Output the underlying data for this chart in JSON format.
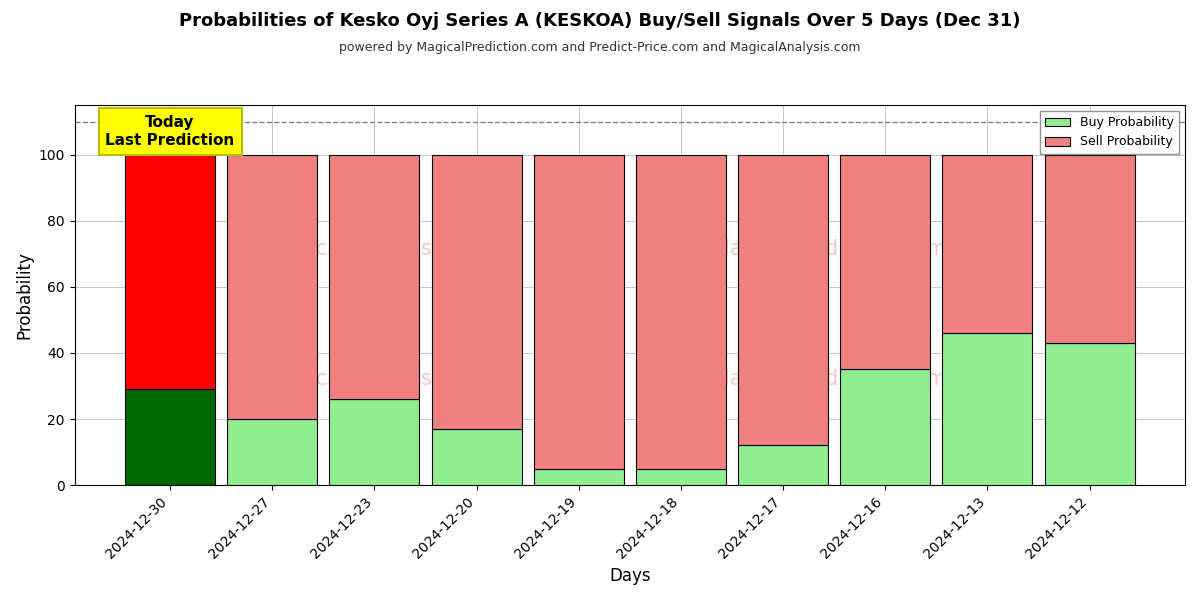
{
  "title": "Probabilities of Kesko Oyj Series A (KESKOA) Buy/Sell Signals Over 5 Days (Dec 31)",
  "subtitle": "powered by MagicalPrediction.com and Predict-Price.com and MagicalAnalysis.com",
  "xlabel": "Days",
  "ylabel": "Probability",
  "categories": [
    "2024-12-30",
    "2024-12-27",
    "2024-12-23",
    "2024-12-20",
    "2024-12-19",
    "2024-12-18",
    "2024-12-17",
    "2024-12-16",
    "2024-12-13",
    "2024-12-12"
  ],
  "buy_values": [
    29,
    20,
    26,
    17,
    5,
    5,
    12,
    35,
    46,
    43
  ],
  "sell_values": [
    71,
    80,
    74,
    83,
    95,
    95,
    88,
    65,
    54,
    57
  ],
  "today_index": 0,
  "today_buy_color": "#006600",
  "today_sell_color": "#ff0000",
  "other_buy_color": "#90ee90",
  "other_sell_color": "#f08080",
  "today_label_text": "Today\nLast Prediction",
  "today_label_bg": "#ffff00",
  "legend_buy_label": "Buy Probability",
  "legend_sell_label": "Sell Probability",
  "ylim": [
    0,
    115
  ],
  "yticks": [
    0,
    20,
    40,
    60,
    80,
    100
  ],
  "dashed_line_y": 110,
  "watermark_text1": "MagicalAnalysis.com",
  "watermark_text2": "MagicalPrediction.com",
  "bar_edge_color": "#000000",
  "bar_linewidth": 0.8,
  "background_color": "#ffffff",
  "grid_color": "#bbbbbb"
}
